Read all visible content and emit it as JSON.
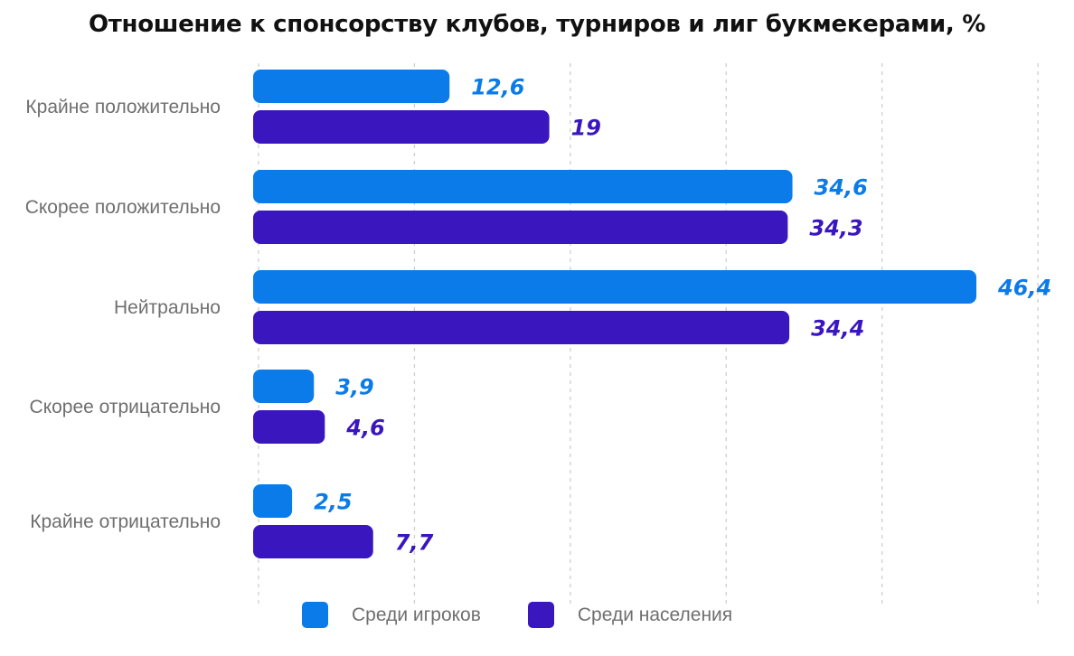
{
  "chart_data": {
    "type": "bar",
    "orientation": "horizontal",
    "title": "Отношение к спонсорству клубов, турниров и лиг букмекерами, %",
    "categories": [
      "Крайне положительно",
      "Скорее положительно",
      "Нейтрально",
      "Скорее отрицательно",
      "Крайне отрицательно"
    ],
    "series": [
      {
        "name": "Среди игроков",
        "color": "#0a7be8",
        "values": [
          12.6,
          34.6,
          46.4,
          3.9,
          2.5
        ],
        "labels": [
          "12,6",
          "34,6",
          "46,4",
          "3,9",
          "2,5"
        ]
      },
      {
        "name": "Среди населения",
        "color": "#3a16bf",
        "values": [
          19,
          34.3,
          34.4,
          4.6,
          7.7
        ],
        "labels": [
          "19",
          "34,3",
          "34,4",
          "4,6",
          "7,7"
        ]
      }
    ],
    "xlim": [
      0,
      50
    ],
    "grid": "vertical-dashed",
    "legend_position": "bottom"
  }
}
